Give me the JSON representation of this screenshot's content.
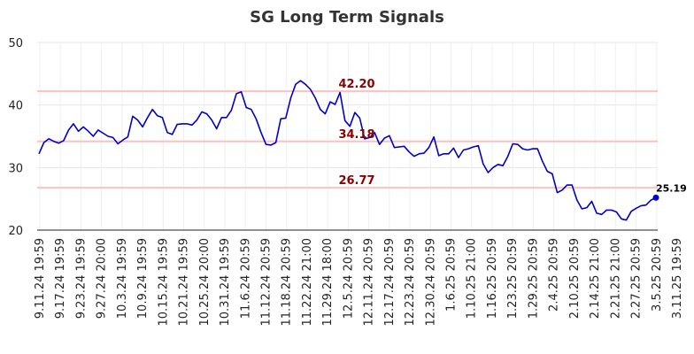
{
  "chart_data": {
    "type": "line",
    "title": "SG Long Term Signals",
    "xlabel": "",
    "ylabel": "",
    "ylim": [
      20,
      50
    ],
    "y_ticks": [
      "20",
      "30",
      "40",
      "50"
    ],
    "grid": true,
    "x_ticks": [
      "9.11.24 19:59",
      "9.17.24 19:59",
      "9.23.24 19:59",
      "9.27.24 20:00",
      "10.3.24 19:59",
      "10.9.24 19:59",
      "10.15.24 19:59",
      "10.21.24 19:59",
      "10.25.24 20:00",
      "10.31.24 19:59",
      "11.6.24 20:59",
      "11.12.24 20:59",
      "11.18.24 20:59",
      "11.22.24 21:00",
      "11.29.24 18:00",
      "12.5.24 20:59",
      "12.11.24 20:59",
      "12.17.24 20:59",
      "12.23.24 20:59",
      "12.30.24 20:59",
      "1.6.25 20:59",
      "1.10.25 21:00",
      "1.16.25 20:59",
      "1.23.25 20:59",
      "1.29.25 20:59",
      "2.4.25 20:59",
      "2.10.25 20:59",
      "2.14.25 21:00",
      "2.21.25 21:00",
      "2.27.25 20:59",
      "3.5.25 20:59",
      "3.11.25 19:59"
    ],
    "levels": [
      {
        "value": 42.2,
        "label": "42.20",
        "color": "#ffc0c0",
        "label_color": "#8b0000"
      },
      {
        "value": 34.18,
        "label": "34.18",
        "color": "#ffc0c0",
        "label_color": "#8b0000"
      },
      {
        "value": 26.77,
        "label": "26.77",
        "color": "#ffc0c0",
        "label_color": "#8b0000"
      }
    ],
    "series": [
      {
        "color": "#0000cc",
        "values": [
          32.2,
          34.0,
          34.6,
          34.2,
          33.9,
          34.3,
          36.0,
          37.0,
          35.8,
          36.5,
          35.8,
          35.0,
          36.0,
          35.5,
          35.0,
          34.8,
          33.8,
          34.4,
          34.9,
          38.2,
          37.6,
          36.5,
          38.0,
          39.3,
          38.3,
          38.0,
          35.6,
          35.3,
          36.9,
          37.0,
          37.0,
          36.8,
          37.6,
          38.9,
          38.6,
          37.6,
          36.2,
          38.0,
          38.0,
          39.2,
          41.8,
          42.1,
          39.6,
          39.3,
          37.8,
          35.6,
          33.7,
          33.6,
          34.0,
          37.8,
          37.9,
          41.1,
          43.3,
          43.9,
          43.3,
          42.5,
          41.1,
          39.3,
          38.6,
          40.5,
          40.1,
          42.0,
          37.5,
          36.6,
          38.8,
          37.9,
          34.6,
          34.8,
          35.6,
          33.7,
          34.7,
          35.1,
          33.2,
          33.3,
          33.4,
          32.5,
          31.8,
          32.2,
          32.3,
          33.2,
          34.9,
          31.9,
          32.2,
          32.2,
          33.1,
          31.6,
          32.8,
          33.0,
          33.3,
          33.5,
          30.6,
          29.2,
          30.0,
          30.5,
          30.3,
          31.8,
          33.8,
          33.7,
          33.0,
          32.8,
          33.0,
          33.0,
          31.0,
          29.4,
          29.0,
          26.0,
          26.4,
          27.2,
          27.2,
          24.8,
          23.4,
          23.6,
          24.6,
          22.7,
          22.5,
          23.2,
          23.2,
          22.9,
          21.8,
          21.6,
          23.0,
          23.5,
          23.9,
          24.0,
          24.8,
          25.19
        ]
      }
    ],
    "end_label": "25.19"
  }
}
